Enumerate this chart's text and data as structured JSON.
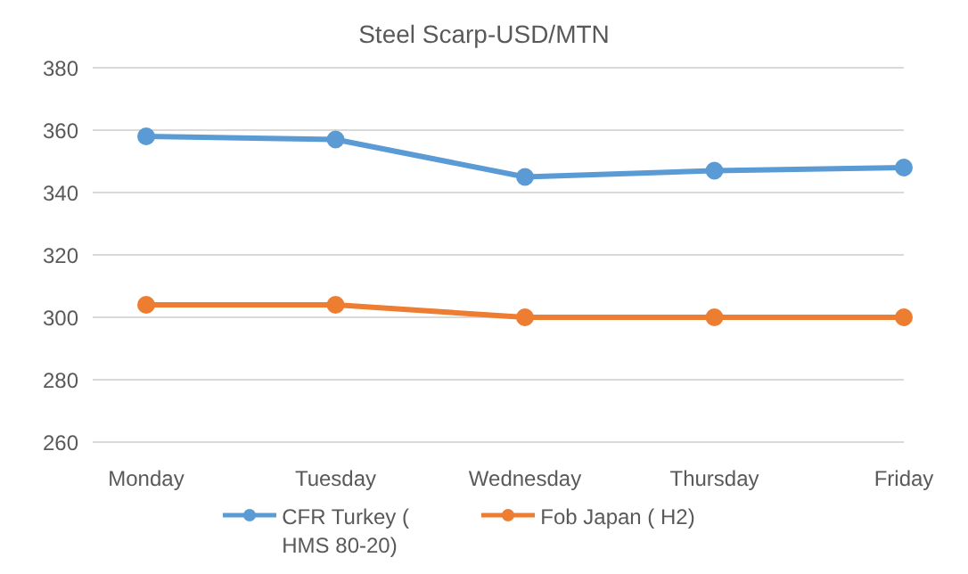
{
  "chart_data": {
    "type": "line",
    "title": "Steel Scarp-USD/MTN",
    "categories": [
      "Monday",
      "Tuesday",
      "Wednesday",
      "Thursday",
      "Friday"
    ],
    "series": [
      {
        "name": "CFR Turkey ( HMS 80-20)",
        "color": "#5b9bd5",
        "values": [
          358,
          357,
          345,
          347,
          348
        ]
      },
      {
        "name": "Fob Japan ( H2)",
        "color": "#ed7d31",
        "values": [
          304,
          304,
          300,
          300,
          300
        ]
      }
    ],
    "ylim": [
      260,
      380
    ],
    "yticks": [
      260,
      280,
      300,
      320,
      340,
      360,
      380
    ],
    "grid": "y",
    "legend": "bottom",
    "marker": "circle",
    "line_style": "solid"
  }
}
